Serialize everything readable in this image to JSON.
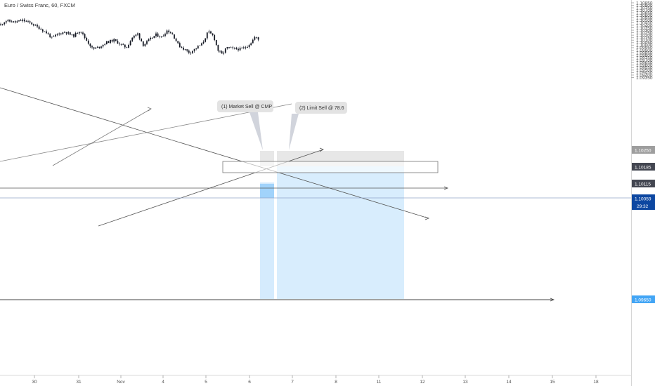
{
  "title": "Euro / Swiss Franc, 60, FXCM",
  "chart_data": {
    "type": "candlestick",
    "y_ticks": [
      "1.10850",
      "1.10800",
      "1.10750",
      "1.10700",
      "1.10650",
      "1.10600",
      "1.10550",
      "1.10500",
      "1.10450",
      "1.10400",
      "1.10350",
      "1.10300",
      "1.10250",
      "1.10200",
      "1.10150",
      "1.10100",
      "1.10050",
      "1.10000",
      "1.09950",
      "1.09900",
      "1.09850",
      "1.09800",
      "1.09750",
      "1.09700",
      "1.09650",
      "1.09600",
      "1.09550",
      "1.09500",
      "1.09450",
      "1.09400",
      "1.09350"
    ],
    "x_ticks": [
      "30",
      "31",
      "Nov",
      "4",
      "5",
      "6",
      "7",
      "8",
      "11",
      "12",
      "13",
      "14",
      "15",
      "18"
    ],
    "ylim": [
      1.0935,
      1.0887
    ],
    "price_badges": [
      {
        "value": "1.10250",
        "color": "#9e9e9e"
      },
      {
        "value": "1.10185",
        "color": "#434651"
      },
      {
        "value": "1.10115",
        "color": "#434651"
      },
      {
        "value": "1.10059",
        "color": "#0d47a1"
      },
      {
        "value": "29:32",
        "color": "#0d47a1"
      },
      {
        "value": "1.09650",
        "color": "#42a5f5"
      }
    ],
    "annotations": [
      "(1) Market Sell @ CMP",
      "(2) Limit Sell @ 78.6"
    ],
    "candle_color": "#131722"
  }
}
